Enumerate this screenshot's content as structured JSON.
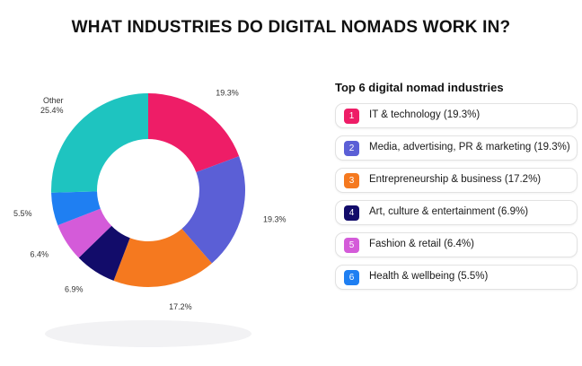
{
  "title": "WHAT INDUSTRIES DO DIGITAL NOMADS WORK IN?",
  "legend_title": "Top 6 digital nomad industries",
  "legend_items": [
    {
      "number": "1",
      "label": "IT & technology (19.3%)",
      "color": "#ee1d67"
    },
    {
      "number": "2",
      "label": "Media, advertising, PR & marketing (19.3%)",
      "color": "#5b5fd6"
    },
    {
      "number": "3",
      "label": "Entrepreneurship & business (17.2%)",
      "color": "#f5791f"
    },
    {
      "number": "4",
      "label": "Art, culture & entertainment (6.9%)",
      "color": "#120c6a"
    },
    {
      "number": "5",
      "label": "Fashion & retail (6.4%)",
      "color": "#d45bd9"
    },
    {
      "number": "6",
      "label": "Health & wellbeing  (5.5%)",
      "color": "#1f7ff2"
    }
  ],
  "chart_data": {
    "type": "pie",
    "donut": true,
    "title": "WHAT INDUSTRIES DO DIGITAL NOMADS WORK IN?",
    "slices": [
      {
        "value": 19.3,
        "label": "19.3%",
        "color": "#ee1d67"
      },
      {
        "value": 19.3,
        "label": "19.3%",
        "color": "#5b5fd6"
      },
      {
        "value": 17.2,
        "label": "17.2%",
        "color": "#f5791f"
      },
      {
        "value": 6.9,
        "label": "6.9%",
        "color": "#120c6a"
      },
      {
        "value": 6.4,
        "label": "6.4%",
        "color": "#d45bd9"
      },
      {
        "value": 5.5,
        "label": "5.5%",
        "color": "#1f7ff2"
      },
      {
        "value": 25.4,
        "label": "Other\n25.4%",
        "color": "#1ec4c0"
      }
    ]
  }
}
